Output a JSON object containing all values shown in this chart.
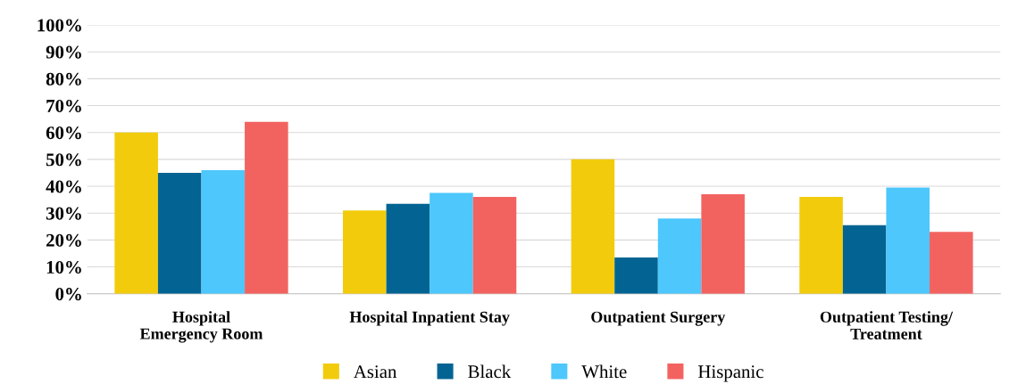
{
  "chart_data": {
    "type": "bar",
    "categories": [
      "Hospital\nEmergency Room",
      "Hospital Inpatient Stay",
      "Outpatient Surgery",
      "Outpatient Testing/\nTreatment"
    ],
    "series": [
      {
        "name": "Asian",
        "color": "#f2cc0c",
        "values": [
          60,
          31,
          50,
          36
        ]
      },
      {
        "name": "Black",
        "color": "#036493",
        "values": [
          45,
          33.5,
          13.5,
          25.5
        ]
      },
      {
        "name": "White",
        "color": "#4dc7fc",
        "values": [
          46,
          37.5,
          28,
          39.5
        ]
      },
      {
        "name": "Hispanic",
        "color": "#f26360",
        "values": [
          64,
          36,
          37,
          23
        ]
      }
    ],
    "ylim": [
      0,
      100
    ],
    "yticks": [
      {
        "value": 0,
        "label": "0%"
      },
      {
        "value": 10,
        "label": "10%"
      },
      {
        "value": 20,
        "label": "20%"
      },
      {
        "value": 30,
        "label": "30%"
      },
      {
        "value": 40,
        "label": "40%"
      },
      {
        "value": 50,
        "label": "50%"
      },
      {
        "value": 60,
        "label": "60%"
      },
      {
        "value": 70,
        "label": "70%"
      },
      {
        "value": 80,
        "label": "80%"
      },
      {
        "value": 90,
        "label": "90%"
      },
      {
        "value": 100,
        "label": "100%"
      }
    ],
    "grid": "y",
    "legend": "bottom"
  }
}
